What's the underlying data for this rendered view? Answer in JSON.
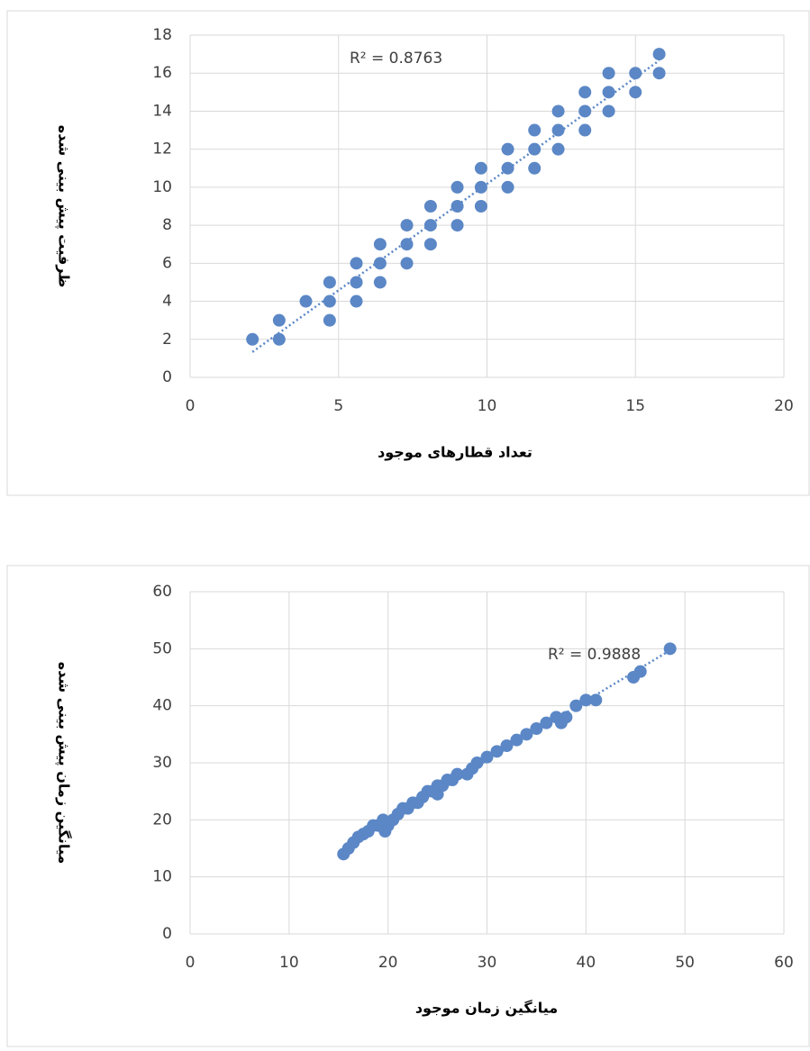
{
  "chart_data": [
    {
      "type": "scatter",
      "x_label": "تعداد قطارهای موجود",
      "y_label": "ظرفیت پیش بینی شده",
      "trendline_label": "R² = 0.8763",
      "color": "#5b87c6",
      "grid": true,
      "trendline": true,
      "x": [
        2.1,
        3.0,
        3.0,
        3.9,
        4.7,
        4.7,
        4.7,
        5.6,
        5.6,
        5.6,
        6.4,
        6.4,
        6.4,
        7.3,
        7.3,
        7.3,
        8.1,
        8.1,
        8.1,
        9.0,
        9.0,
        9.0,
        9.8,
        9.8,
        9.8,
        10.7,
        10.7,
        10.7,
        11.6,
        11.6,
        11.6,
        12.4,
        12.4,
        12.4,
        13.3,
        13.3,
        13.3,
        14.1,
        14.1,
        14.1,
        15.0,
        15.0,
        15.8,
        15.8
      ],
      "y": [
        2,
        3,
        2,
        4,
        5,
        4,
        3,
        6,
        5,
        4,
        7,
        6,
        5,
        8,
        7,
        6,
        9,
        8,
        7,
        10,
        9,
        8,
        11,
        10,
        9,
        12,
        11,
        10,
        13,
        12,
        11,
        14,
        13,
        12,
        15,
        14,
        13,
        16,
        15,
        14,
        16,
        15,
        17,
        16
      ],
      "xlim": [
        0,
        20
      ],
      "xticks": [
        0,
        5,
        10,
        15,
        20
      ],
      "ylim": [
        0,
        18
      ],
      "yticks": [
        0,
        2,
        4,
        6,
        8,
        10,
        12,
        14,
        16,
        18
      ]
    },
    {
      "type": "scatter",
      "x_label": "میانگین زمان موجود",
      "y_label": "میانگین زمان پیش بینی شده",
      "trendline_label": "R² = 0.9888",
      "color": "#5b87c6",
      "grid": true,
      "trendline": true,
      "x": [
        15.5,
        16,
        16.5,
        17,
        17.5,
        18,
        18.5,
        19,
        19.5,
        19.7,
        20,
        20.5,
        21,
        21.5,
        22,
        22.5,
        23,
        23.5,
        24,
        24.5,
        25,
        25,
        25.5,
        26,
        26.5,
        27,
        28,
        28.5,
        29,
        30,
        31,
        32,
        33,
        34,
        35,
        36,
        37,
        37.5,
        38,
        39,
        40,
        41,
        44.8,
        45.5,
        48.5
      ],
      "y": [
        14,
        15,
        16,
        17,
        17.5,
        18,
        19,
        19,
        20,
        18,
        19,
        20,
        21,
        22,
        22,
        23,
        23,
        24,
        25,
        25,
        26,
        24.5,
        26,
        27,
        27,
        28,
        28,
        29,
        30,
        31,
        32,
        33,
        34,
        35,
        36,
        37,
        38,
        37,
        38,
        40,
        41,
        41,
        45,
        46,
        50
      ],
      "xlim": [
        0,
        60
      ],
      "xticks": [
        0,
        10,
        20,
        30,
        40,
        50,
        60
      ],
      "ylim": [
        0,
        60
      ],
      "yticks": [
        0,
        10,
        20,
        30,
        40,
        50,
        60
      ]
    }
  ]
}
